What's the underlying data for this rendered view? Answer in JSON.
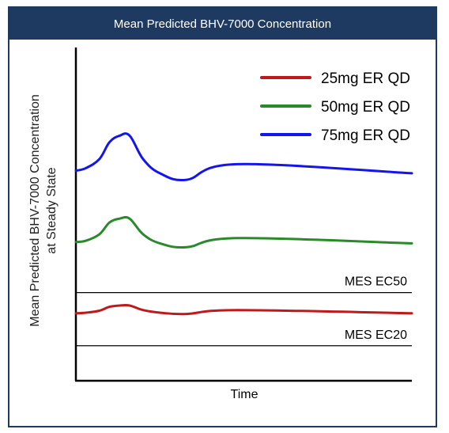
{
  "chart_data": {
    "type": "line",
    "title": "Mean Predicted BHV-7000 Concentration",
    "xlabel": "Time",
    "ylabel_line1": "Mean Predicted BHV-7000 Concentration",
    "ylabel_line2": "at Steady State",
    "x": [
      0,
      3,
      7,
      10,
      13,
      16,
      20,
      25,
      33,
      48,
      100
    ],
    "series": [
      {
        "name": "25mg ER QD",
        "color": "#c0191c",
        "values": [
          3.5,
          3.55,
          3.7,
          4.0,
          4.1,
          4.1,
          3.75,
          3.55,
          3.45,
          3.75,
          3.5
        ]
      },
      {
        "name": "50mg ER QD",
        "color": "#2a8a2a",
        "values": [
          9.0,
          9.1,
          9.6,
          10.5,
          10.8,
          10.8,
          9.6,
          8.9,
          8.6,
          9.3,
          8.9
        ]
      },
      {
        "name": "75mg ER QD",
        "color": "#1414ee",
        "values": [
          14.5,
          14.7,
          15.4,
          16.7,
          17.2,
          17.2,
          15.4,
          14.3,
          13.8,
          15.0,
          14.3
        ]
      }
    ],
    "reference_lines": [
      {
        "label": "MES EC50",
        "value": 5.1
      },
      {
        "label": "MES EC20",
        "value": 1.0
      }
    ],
    "xlim": [
      0,
      100
    ],
    "ylim": [
      -1.7,
      24.0
    ],
    "grid": false,
    "legend_position": "top-right"
  }
}
